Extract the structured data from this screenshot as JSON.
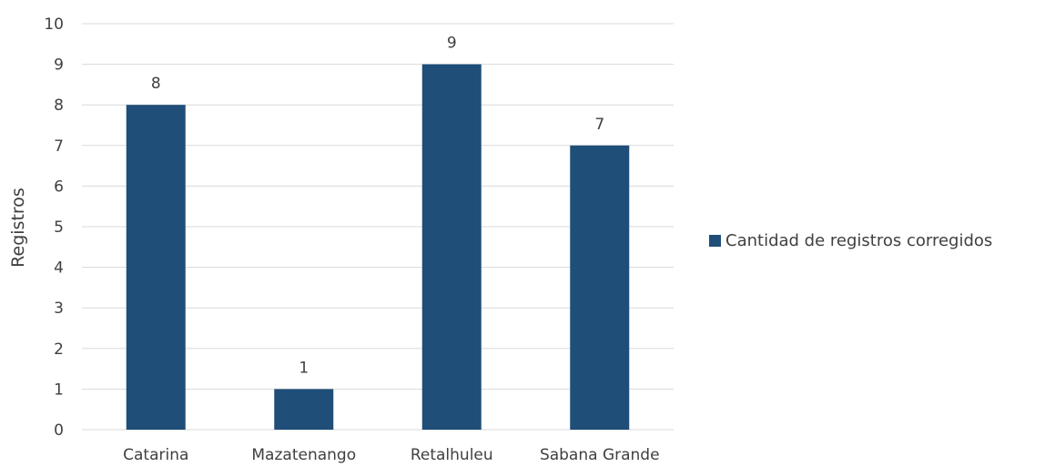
{
  "chart_data": {
    "type": "bar",
    "categories": [
      "Catarina",
      "Mazatenango",
      "Retalhuleu",
      "Sabana Grande"
    ],
    "series": [
      {
        "name": "Cantidad de registros corregidos",
        "values": [
          8,
          1,
          9,
          7
        ],
        "color": "#1f4e79"
      }
    ],
    "data_labels": [
      "8",
      "1",
      "9",
      "7"
    ],
    "xlabel": "",
    "ylabel": "Registros",
    "ylim": [
      0,
      10
    ],
    "y_ticks": [
      "0",
      "1",
      "2",
      "3",
      "4",
      "5",
      "6",
      "7",
      "8",
      "9",
      "10"
    ],
    "grid": true,
    "legend_position": "right",
    "gridline_color": "#d9d9d9",
    "text_color": "#404040"
  }
}
